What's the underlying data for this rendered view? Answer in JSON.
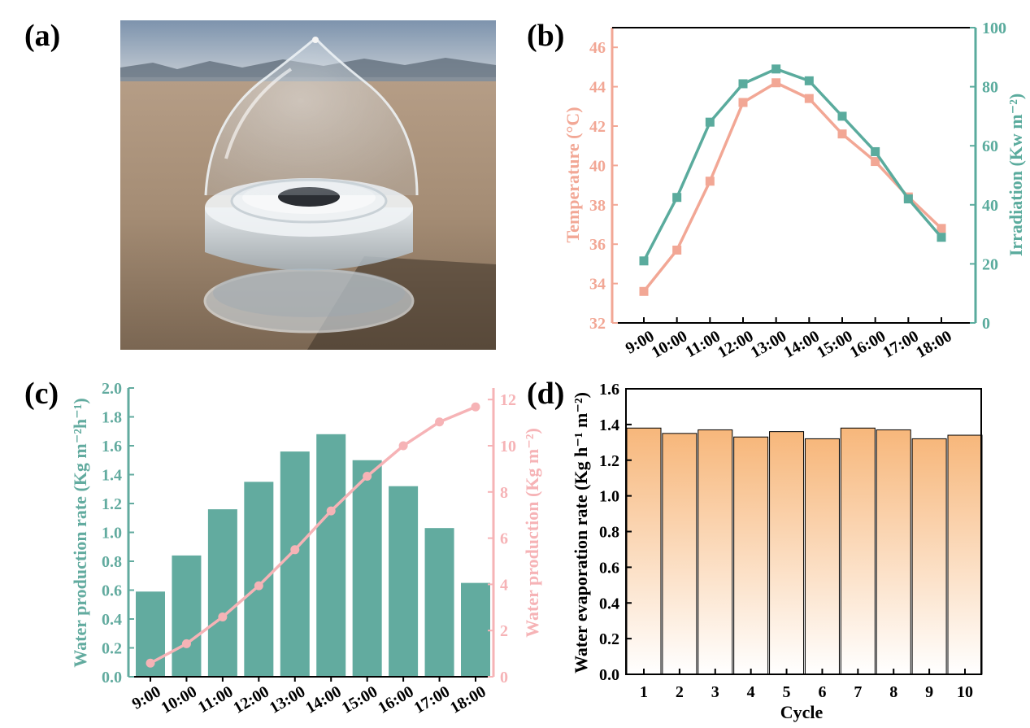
{
  "labels": {
    "a": "(a)",
    "b": "(b)",
    "c": "(c)",
    "d": "(d)"
  },
  "colors": {
    "salmon": "#f2a795",
    "teal": "#5aab9d",
    "green_bar": "#62ab9f",
    "pink_line": "#f6b3b6",
    "orange": "#f7b77b"
  },
  "chart_data": [
    {
      "panel": "b",
      "type": "line",
      "categories": [
        "9:00",
        "10:00",
        "11:00",
        "12:00",
        "13:00",
        "14:00",
        "15:00",
        "16:00",
        "17:00",
        "18:00"
      ],
      "series": [
        {
          "axis": "left",
          "color": "#f2a795",
          "values": [
            33.6,
            35.7,
            39.2,
            43.2,
            44.2,
            43.4,
            41.6,
            40.2,
            38.4,
            36.8
          ]
        },
        {
          "axis": "right",
          "color": "#5aab9d",
          "values": [
            21,
            42.5,
            68,
            81,
            86,
            82,
            70,
            58,
            42,
            29
          ]
        }
      ],
      "ylabel": "Temperature (°C)",
      "y2label": "Irradiation (Kw m⁻²)",
      "ylim": [
        32,
        47
      ],
      "yticks": [
        "32",
        "34",
        "36",
        "38",
        "40",
        "42",
        "44",
        "46"
      ],
      "y2lim": [
        0,
        100
      ],
      "y2ticks": [
        "0",
        "20",
        "40",
        "60",
        "80",
        "100"
      ]
    },
    {
      "panel": "c",
      "type": "bar",
      "categories": [
        "9:00",
        "10:00",
        "11:00",
        "12:00",
        "13:00",
        "14:00",
        "15:00",
        "16:00",
        "17:00",
        "18:00"
      ],
      "series": [
        {
          "type": "bar",
          "axis": "left",
          "color": "#62ab9f",
          "values": [
            0.59,
            0.84,
            1.16,
            1.35,
            1.56,
            1.68,
            1.5,
            1.32,
            1.03,
            0.65
          ]
        },
        {
          "type": "line",
          "axis": "right",
          "color": "#f6b3b6",
          "values": [
            0.59,
            1.43,
            2.59,
            3.94,
            5.5,
            7.18,
            8.68,
            10.0,
            11.03,
            11.68
          ]
        }
      ],
      "ylabel": "Water production rate (Kg m⁻²h⁻¹)",
      "y2label": "Water production (Kg m⁻²)",
      "ylim": [
        0,
        2.0
      ],
      "yticks": [
        "0.0",
        "0.2",
        "0.4",
        "0.6",
        "0.8",
        "1.0",
        "1.2",
        "1.4",
        "1.6",
        "1.8",
        "2.0"
      ],
      "y2lim": [
        0,
        12.5
      ],
      "y2ticks": [
        "0",
        "2",
        "4",
        "6",
        "8",
        "10",
        "12"
      ]
    },
    {
      "panel": "d",
      "type": "bar",
      "categories": [
        "1",
        "2",
        "3",
        "4",
        "5",
        "6",
        "7",
        "8",
        "9",
        "10"
      ],
      "values": [
        1.38,
        1.35,
        1.37,
        1.33,
        1.36,
        1.32,
        1.38,
        1.37,
        1.32,
        1.34
      ],
      "xlabel": "Cycle",
      "ylabel": "Water evaporation rate (Kg h⁻¹ m⁻²)",
      "ylim": [
        0,
        1.6
      ],
      "yticks": [
        "0.0",
        "0.2",
        "0.4",
        "0.6",
        "0.8",
        "1.0",
        "1.2",
        "1.4",
        "1.6"
      ]
    }
  ]
}
